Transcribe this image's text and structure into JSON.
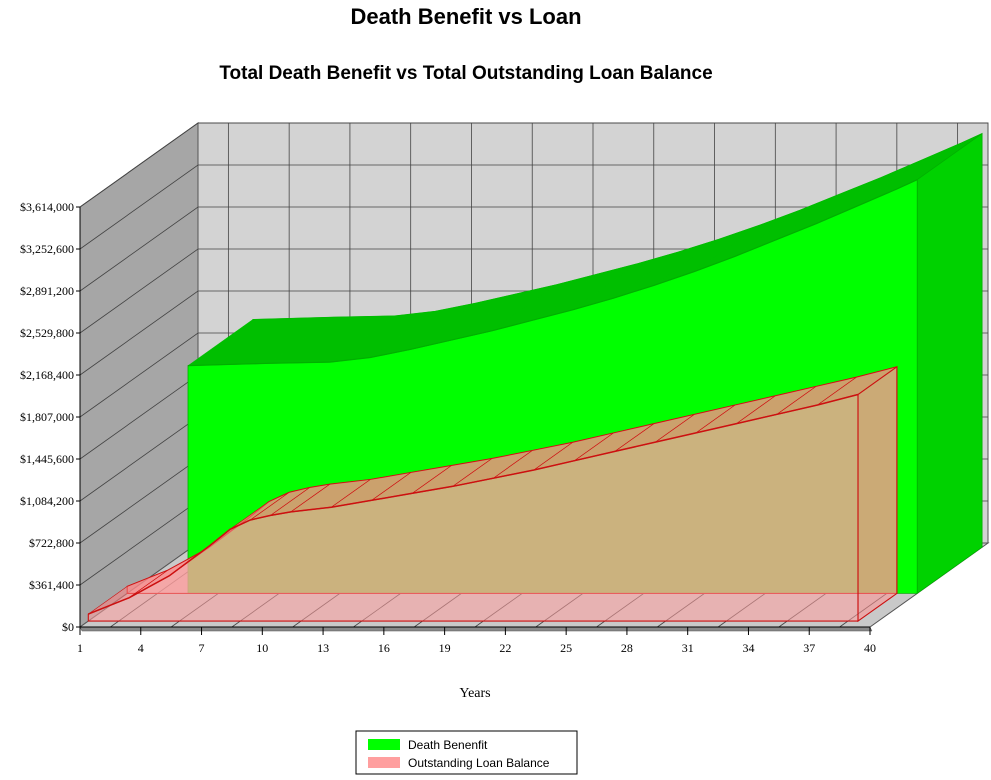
{
  "chart_data": {
    "type": "area",
    "title": "Death Benefit vs Loan",
    "subtitle": "Total Death Benefit vs Total Outstanding Loan Balance",
    "xlabel": "Years",
    "ylabel": "",
    "x_ticks": [
      "1",
      "4",
      "7",
      "10",
      "13",
      "16",
      "19",
      "22",
      "25",
      "28",
      "31",
      "34",
      "37",
      "40"
    ],
    "y_ticks": [
      "$0",
      "$361,400",
      "$722,800",
      "$1,084,200",
      "$1,445,600",
      "$1,807,000",
      "$2,168,400",
      "$2,529,800",
      "$2,891,200",
      "$3,252,600",
      "$3,614,000"
    ],
    "y_values": [
      0,
      361400,
      722800,
      1084200,
      1445600,
      1807000,
      2168400,
      2529800,
      2891200,
      3252600,
      3614000
    ],
    "xlim": [
      1,
      40
    ],
    "ylim": [
      0,
      3614000
    ],
    "grid": true,
    "legend_position": "bottom",
    "series": [
      {
        "name": "Death Benenfit",
        "color": "#00ff00",
        "x": [
          4,
          8,
          11,
          13,
          15,
          17,
          19,
          21,
          23,
          25,
          27,
          29,
          31,
          33,
          35,
          37,
          39,
          40
        ],
        "values": [
          1960000,
          1980000,
          1990000,
          2030000,
          2100000,
          2180000,
          2260000,
          2350000,
          2440000,
          2540000,
          2650000,
          2770000,
          2900000,
          3040000,
          3180000,
          3330000,
          3480000,
          3560000
        ]
      },
      {
        "name": "Outstanding Loan Balance",
        "color": "#ff9f9f",
        "x": [
          1,
          3,
          5,
          7,
          8,
          9,
          10,
          11,
          13,
          15,
          17,
          19,
          21,
          23,
          25,
          27,
          29,
          31,
          33,
          35,
          37,
          39
        ],
        "values": [
          60000,
          200000,
          390000,
          650000,
          790000,
          870000,
          910000,
          940000,
          980000,
          1040000,
          1100000,
          1160000,
          1230000,
          1300000,
          1380000,
          1460000,
          1540000,
          1620000,
          1700000,
          1780000,
          1860000,
          1950000
        ]
      }
    ]
  }
}
